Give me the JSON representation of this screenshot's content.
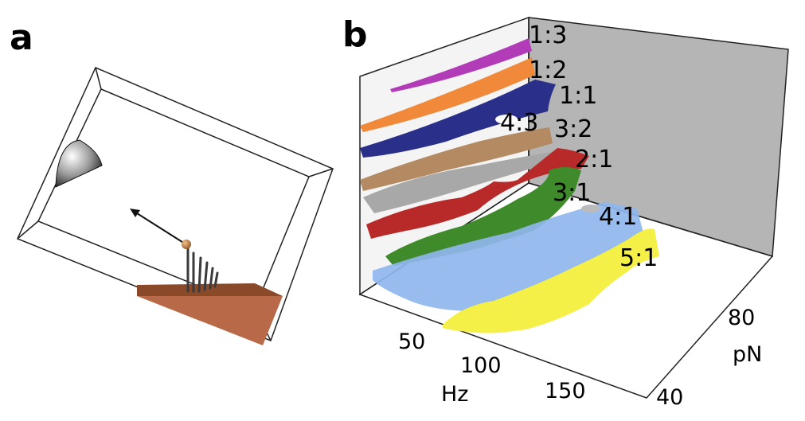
{
  "panels": {
    "a": {
      "label": "a"
    },
    "b": {
      "label": "b"
    }
  },
  "panel_b": {
    "x_axis": {
      "label": "Hz",
      "ticks": [
        "50",
        "100",
        "150"
      ]
    },
    "y_axis": {
      "label": "pN",
      "ticks": [
        "80",
        "40"
      ]
    },
    "regions": [
      {
        "ratio": "1:3",
        "color": "#b23cb8"
      },
      {
        "ratio": "1:2",
        "color": "#f0893a"
      },
      {
        "ratio": "1:1",
        "color": "#2a2f8a"
      },
      {
        "ratio": "4:3",
        "color": "#b38a62"
      },
      {
        "ratio": "3:2",
        "color": "#a8a8a8"
      },
      {
        "ratio": "2:1",
        "color": "#b82a2a"
      },
      {
        "ratio": "3:1",
        "color": "#3f8a2a"
      },
      {
        "ratio": "4:1",
        "color": "#8fb6ec"
      },
      {
        "ratio": "5:1",
        "color": "#f4f048"
      }
    ]
  }
}
